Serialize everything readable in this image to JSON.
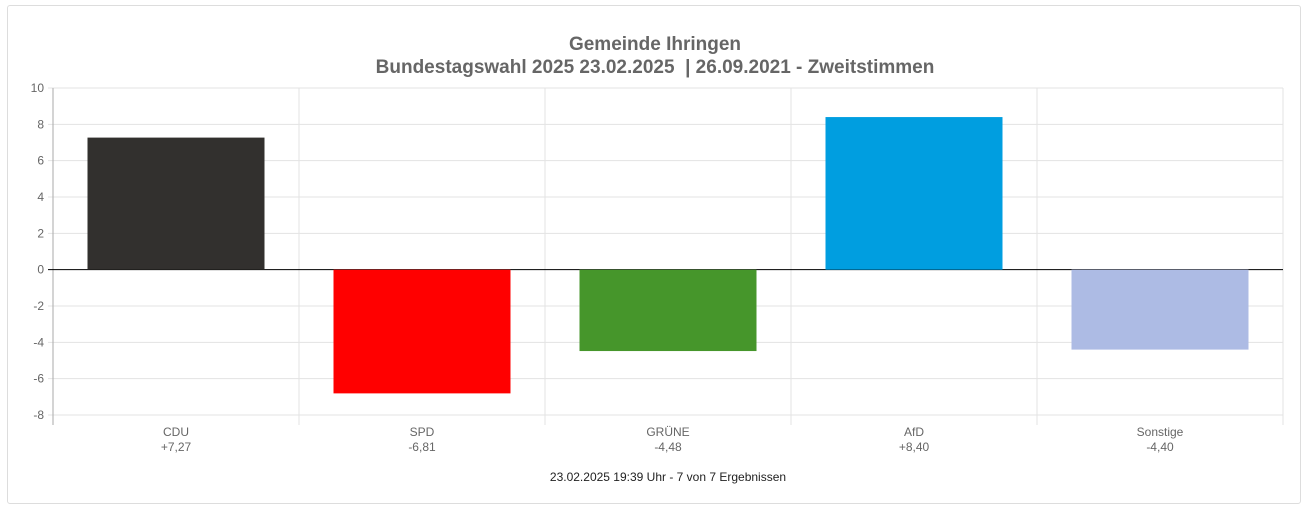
{
  "chart_data": {
    "type": "bar",
    "title": "Gemeinde Ihringen",
    "subtitle": "Bundestagswahl 2025 23.02.2025  | 26.09.2021 - Zweitstimmen",
    "categories": [
      "CDU",
      "SPD",
      "GRÜNE",
      "AfD",
      "Sonstige"
    ],
    "value_labels": [
      "+7,27",
      "-6,81",
      "-4,48",
      "+8,40",
      "-4,40"
    ],
    "values": [
      7.27,
      -6.81,
      -4.48,
      8.4,
      -4.4
    ],
    "colors": [
      "#32302e",
      "#ff0000",
      "#46962b",
      "#009ee0",
      "#adbbe4"
    ],
    "ylim": [
      -8,
      10
    ],
    "yticks": [
      "10",
      "8",
      "6",
      "4",
      "2",
      "0",
      "-2",
      "-4",
      "-6",
      "-8"
    ],
    "grid": true,
    "footer": "23.02.2025 19:39 Uhr - 7 von 7 Ergebnissen"
  }
}
